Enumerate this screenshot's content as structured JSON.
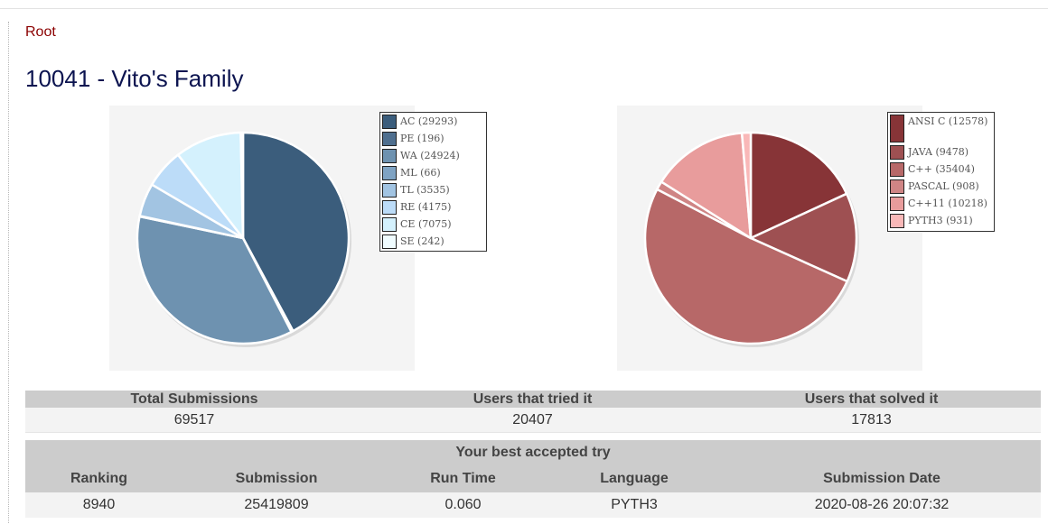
{
  "breadcrumb": {
    "label": "Root"
  },
  "page": {
    "title": "10041 - Vito's Family"
  },
  "chart_data": [
    {
      "type": "pie",
      "title": "",
      "legend_position": "top-right",
      "labels": [
        "AC (29293)",
        "PE (196)",
        "WA (24924)",
        "ML (66)",
        "TL (3535)",
        "RE (4175)",
        "CE (7075)",
        "SE (242)"
      ],
      "categories": [
        "AC",
        "PE",
        "WA",
        "ML",
        "TL",
        "RE",
        "CE",
        "SE"
      ],
      "values": [
        29293,
        196,
        24924,
        66,
        3535,
        4175,
        7075,
        242
      ],
      "colors": [
        "#3b5d7c",
        "#4f6f8f",
        "#6e92b0",
        "#7fa3c3",
        "#a2c4e2",
        "#bcdcf8",
        "#d4f1fd",
        "#f0fcff"
      ]
    },
    {
      "type": "pie",
      "title": "",
      "legend_position": "top-right",
      "labels": [
        "ANSI C (12578)",
        "JAVA (9478)",
        "C++ (35404)",
        "PASCAL (908)",
        "C++11 (10218)",
        "PYTH3 (931)"
      ],
      "categories": [
        "ANSI C",
        "JAVA",
        "C++",
        "PASCAL",
        "C++11",
        "PYTH3"
      ],
      "values": [
        12578,
        9478,
        35404,
        908,
        10218,
        931
      ],
      "colors": [
        "#873437",
        "#9e5052",
        "#b76868",
        "#cf8585",
        "#e89c9c",
        "#f9b8b8"
      ]
    }
  ],
  "stats": {
    "headers": [
      "Total Submissions",
      "Users that tried it",
      "Users that solved it"
    ],
    "values": [
      "69517",
      "20407",
      "17813"
    ]
  },
  "best_try": {
    "caption": "Your best accepted try",
    "headers": [
      "Ranking",
      "Submission",
      "Run Time",
      "Language",
      "Submission Date"
    ],
    "values": [
      "8940",
      "25419809",
      "0.060",
      "PYTH3",
      "2020-08-26 20:07:32"
    ]
  }
}
